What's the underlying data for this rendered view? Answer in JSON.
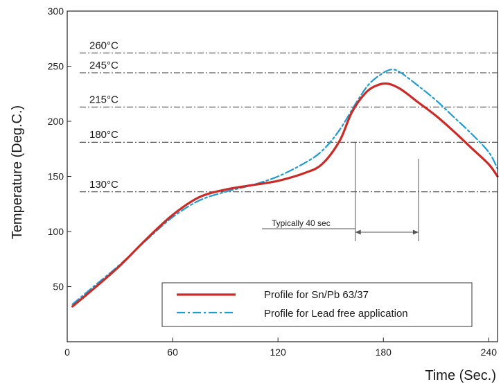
{
  "chart_data": {
    "type": "line",
    "xlabel": "Time (Sec.)",
    "ylabel": "Temperature (Deg.C.)",
    "xlim": [
      0,
      245
    ],
    "ylim": [
      0,
      300
    ],
    "x_ticks": [
      "0",
      "60",
      "120",
      "180",
      "240"
    ],
    "y_ticks": [
      "50",
      "100",
      "150",
      "200",
      "250",
      "300"
    ],
    "grid": false,
    "legend_position": "bottom-right",
    "reference_lines": [
      {
        "value": 262,
        "label": "260°C"
      },
      {
        "value": 244,
        "label": "245°C"
      },
      {
        "value": 213,
        "label": "215°C"
      },
      {
        "value": 181,
        "label": "180°C"
      },
      {
        "value": 136,
        "label": "130°C"
      }
    ],
    "annotation": {
      "label": "Typically 40 sec",
      "x_start": 164,
      "x_end": 200
    },
    "series": [
      {
        "name": "Profile for Sn/Pb 63/37",
        "color": "#cc2a25",
        "style": "solid",
        "points": [
          [
            3,
            32
          ],
          [
            15,
            48
          ],
          [
            30,
            69
          ],
          [
            45,
            93
          ],
          [
            60,
            115
          ],
          [
            75,
            131
          ],
          [
            90,
            138
          ],
          [
            105,
            142
          ],
          [
            120,
            146
          ],
          [
            135,
            153
          ],
          [
            145,
            161
          ],
          [
            155,
            182
          ],
          [
            162,
            208
          ],
          [
            170,
            226
          ],
          [
            177,
            233
          ],
          [
            183,
            234
          ],
          [
            190,
            229
          ],
          [
            200,
            217
          ],
          [
            210,
            205
          ],
          [
            220,
            191
          ],
          [
            230,
            176
          ],
          [
            240,
            161
          ],
          [
            245,
            150
          ]
        ]
      },
      {
        "name": "Profile for Lead free application",
        "color": "#1f9ad4",
        "style": "dash-dot",
        "points": [
          [
            3,
            34
          ],
          [
            15,
            50
          ],
          [
            30,
            70
          ],
          [
            45,
            92
          ],
          [
            60,
            113
          ],
          [
            75,
            128
          ],
          [
            90,
            136
          ],
          [
            105,
            142
          ],
          [
            120,
            150
          ],
          [
            135,
            162
          ],
          [
            145,
            173
          ],
          [
            155,
            192
          ],
          [
            165,
            218
          ],
          [
            172,
            234
          ],
          [
            180,
            244
          ],
          [
            185,
            247
          ],
          [
            190,
            244
          ],
          [
            200,
            232
          ],
          [
            210,
            219
          ],
          [
            220,
            204
          ],
          [
            230,
            189
          ],
          [
            240,
            172
          ],
          [
            245,
            157
          ]
        ]
      }
    ]
  }
}
